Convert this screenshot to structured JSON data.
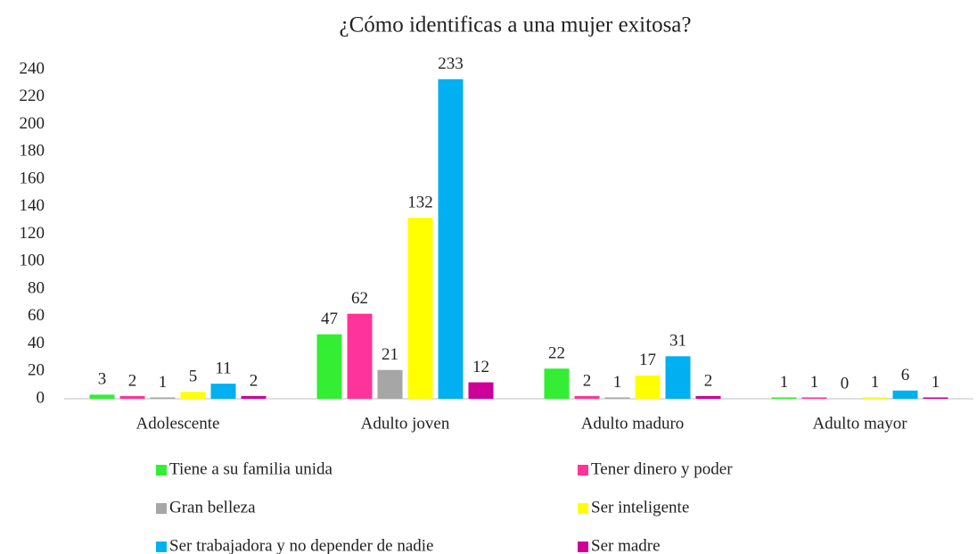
{
  "chart_data": {
    "type": "bar",
    "title": "¿Cómo identificas a una mujer exitosa?",
    "categories": [
      "Adolescente",
      "Adulto joven",
      "Adulto maduro",
      "Adulto mayor"
    ],
    "series": [
      {
        "name": "Tiene a su familia unida",
        "color": "#33ee33",
        "values": [
          3,
          47,
          22,
          1
        ]
      },
      {
        "name": "Tener dinero y poder",
        "color": "#ff3399",
        "values": [
          2,
          62,
          2,
          1
        ]
      },
      {
        "name": "Gran belleza",
        "color": "#a6a6a6",
        "values": [
          1,
          21,
          1,
          0
        ]
      },
      {
        "name": "Ser inteligente",
        "color": "#ffff00",
        "values": [
          5,
          132,
          17,
          1
        ]
      },
      {
        "name": "Ser trabajadora y no depender de nadie",
        "color": "#00b0f0",
        "values": [
          11,
          233,
          31,
          6
        ]
      },
      {
        "name": "Ser madre",
        "color": "#cc0099",
        "values": [
          2,
          12,
          2,
          1
        ]
      }
    ],
    "ylim": [
      0,
      240
    ],
    "yticks": [
      0,
      20,
      40,
      60,
      80,
      100,
      120,
      140,
      160,
      180,
      200,
      220,
      240
    ],
    "grid": false,
    "legend": "bottom"
  }
}
